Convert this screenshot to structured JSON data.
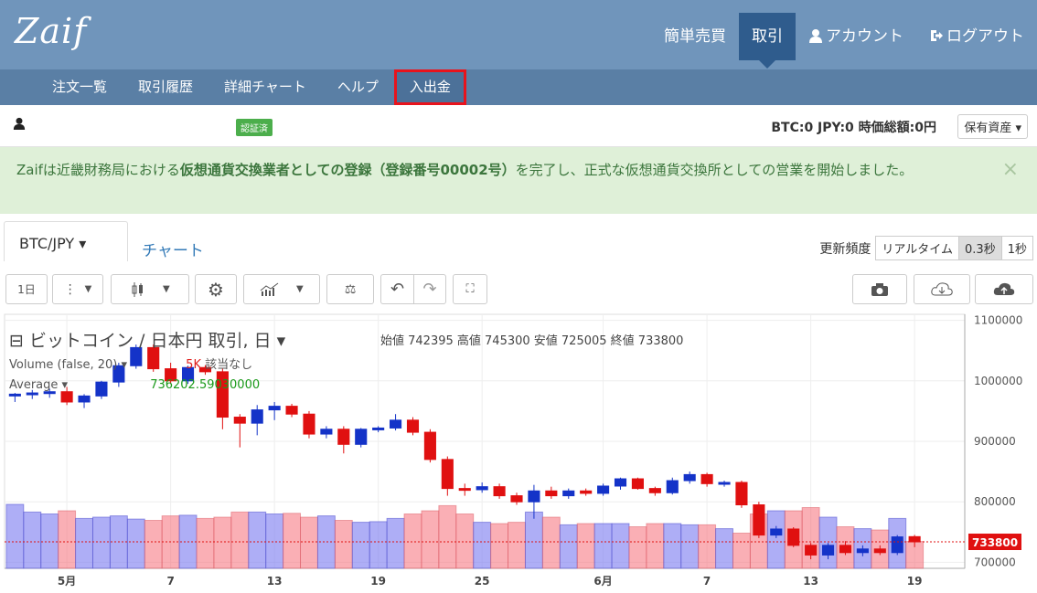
{
  "header": {
    "logo": "Zaif",
    "nav": [
      {
        "label": "簡単売買",
        "icon": ""
      },
      {
        "label": "取引",
        "icon": ""
      },
      {
        "label": "アカウント",
        "icon": "user-icon"
      },
      {
        "label": "ログアウト",
        "icon": "logout-icon"
      }
    ]
  },
  "subnav": [
    "注文一覧",
    "取引履歴",
    "詳細チャート",
    "ヘルプ",
    "入出金"
  ],
  "status": {
    "badge": "認証済",
    "balance_prefix": "BTC:0  JPY:0  時価総額:0円",
    "assets_button": "保有資産 ▾"
  },
  "alert": {
    "pre": "Zaifは近畿財務局における",
    "bold1": "仮想通貨交換業者としての登録（登録番号00002号）",
    "post": "を完了し、正式な仮想通貨交換所としての営業を開始しました。",
    "close": "×"
  },
  "pairbar": {
    "pair": "BTC/JPY ▾",
    "chart_link": "チャート",
    "freq_label": "更新頻度",
    "freq_options": [
      "リアルタイム",
      "0.3秒",
      "1秒"
    ]
  },
  "toolbar": {
    "interval": "1日"
  },
  "chart_data": {
    "type": "candlestick",
    "title": "⊟ ビットコイン / 日本円 取引, 日 ▾",
    "ohlc_labels": "始値 742395  高値 745300  安値 725005  終値 733800",
    "volume_label": "Volume (false, 20) ▾",
    "volume_note_red": "5K",
    "volume_note": "該当なし",
    "average_label": "Average ▾",
    "average_value": "736202.59030000",
    "last_price": "733800",
    "ylim": [
      690000,
      1110000
    ],
    "y_ticks": [
      "1100000",
      "1000000",
      "900000",
      "800000",
      "700000"
    ],
    "x_ticks": [
      "5月",
      "7",
      "13",
      "19",
      "25",
      "6月",
      "7",
      "13",
      "19"
    ],
    "candles": [
      [
        975000,
        980000,
        965000,
        978000
      ],
      [
        978000,
        985000,
        970000,
        980000
      ],
      [
        980000,
        987000,
        972000,
        982000
      ],
      [
        982000,
        990000,
        960000,
        965000
      ],
      [
        965000,
        978000,
        955000,
        975000
      ],
      [
        975000,
        1000000,
        970000,
        998000
      ],
      [
        998000,
        1030000,
        990000,
        1025000
      ],
      [
        1025000,
        1060000,
        1020000,
        1055000
      ],
      [
        1055000,
        1060000,
        1015000,
        1020000
      ],
      [
        1020000,
        1030000,
        995000,
        1000000
      ],
      [
        1000000,
        1025000,
        995000,
        1022000
      ],
      [
        1022000,
        1026000,
        1010000,
        1015000
      ],
      [
        1015000,
        1020000,
        920000,
        940000
      ],
      [
        940000,
        945000,
        890000,
        930000
      ],
      [
        930000,
        960000,
        910000,
        952000
      ],
      [
        952000,
        965000,
        935000,
        958000
      ],
      [
        958000,
        962000,
        940000,
        945000
      ],
      [
        945000,
        950000,
        905000,
        912000
      ],
      [
        912000,
        925000,
        905000,
        920000
      ],
      [
        920000,
        925000,
        880000,
        895000
      ],
      [
        895000,
        922000,
        890000,
        920000
      ],
      [
        920000,
        925000,
        915000,
        922000
      ],
      [
        922000,
        945000,
        918000,
        935000
      ],
      [
        935000,
        940000,
        910000,
        915000
      ],
      [
        915000,
        920000,
        865000,
        870000
      ],
      [
        870000,
        875000,
        810000,
        822000
      ],
      [
        822000,
        830000,
        810000,
        820000
      ],
      [
        820000,
        832000,
        815000,
        825000
      ],
      [
        825000,
        830000,
        805000,
        810000
      ],
      [
        810000,
        815000,
        795000,
        800000
      ],
      [
        800000,
        828000,
        772000,
        818000
      ],
      [
        818000,
        825000,
        805000,
        810000
      ],
      [
        810000,
        822000,
        805000,
        818000
      ],
      [
        818000,
        822000,
        810000,
        814000
      ],
      [
        814000,
        830000,
        810000,
        826000
      ],
      [
        826000,
        840000,
        820000,
        838000
      ],
      [
        838000,
        840000,
        820000,
        822000
      ],
      [
        822000,
        825000,
        810000,
        815000
      ],
      [
        815000,
        840000,
        812000,
        835000
      ],
      [
        835000,
        850000,
        830000,
        845000
      ],
      [
        845000,
        848000,
        825000,
        830000
      ],
      [
        830000,
        835000,
        825000,
        832000
      ],
      [
        832000,
        835000,
        790000,
        795000
      ],
      [
        795000,
        800000,
        740000,
        745000
      ],
      [
        745000,
        760000,
        740000,
        755000
      ],
      [
        755000,
        758000,
        725000,
        728000
      ],
      [
        728000,
        732000,
        705000,
        712000
      ],
      [
        712000,
        732000,
        705000,
        728000
      ],
      [
        728000,
        735000,
        712000,
        716000
      ],
      [
        716000,
        728000,
        710000,
        722000
      ],
      [
        722000,
        728000,
        712000,
        716000
      ],
      [
        716000,
        745000,
        712000,
        742000
      ],
      [
        742395,
        745300,
        725005,
        733800
      ]
    ],
    "volumes": [
      1.0,
      0.88,
      0.85,
      0.9,
      0.78,
      0.8,
      0.82,
      0.77,
      0.75,
      0.82,
      0.83,
      0.78,
      0.8,
      0.88,
      0.88,
      0.85,
      0.86,
      0.8,
      0.82,
      0.75,
      0.72,
      0.73,
      0.78,
      0.85,
      0.9,
      0.98,
      0.85,
      0.72,
      0.7,
      0.72,
      0.88,
      0.8,
      0.68,
      0.7,
      0.7,
      0.7,
      0.65,
      0.7,
      0.7,
      0.68,
      0.68,
      0.62,
      0.55,
      0.85,
      0.9,
      0.9,
      0.95,
      0.8,
      0.65,
      0.62,
      0.6,
      0.78,
      0.42
    ]
  }
}
